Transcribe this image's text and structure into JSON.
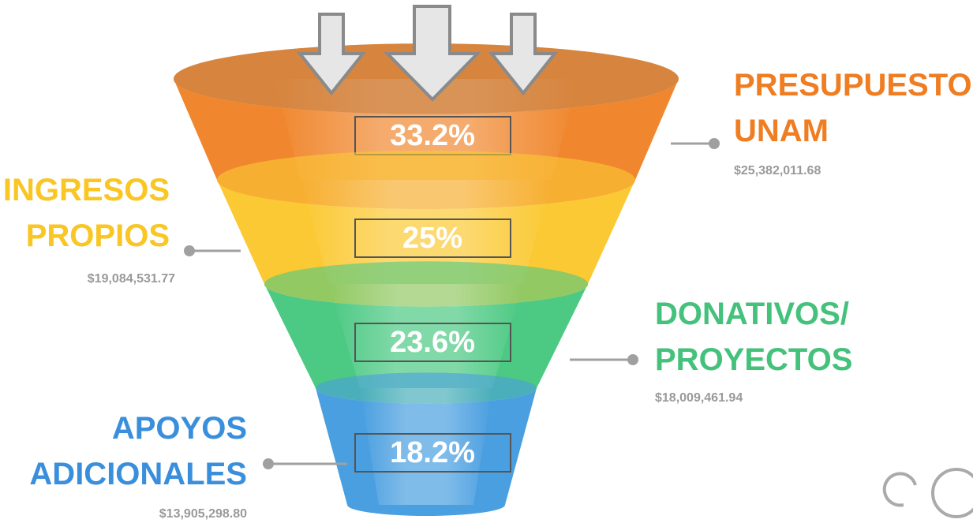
{
  "chart_data": {
    "type": "funnel",
    "categories": [
      "PRESUPUESTO UNAM",
      "INGRESOS PROPIOS",
      "DONATIVOS/ PROYECTOS",
      "APOYOS ADICIONALES"
    ],
    "values": [
      33.2,
      25,
      23.6,
      18.2
    ],
    "value_labels": [
      "33.2%",
      "25%",
      "23.6%",
      "18.2%"
    ],
    "amount_labels": [
      "$25,382,011.68",
      "$19,084,531.77",
      "$18,009,461.94",
      "$13,905,298.80"
    ],
    "colors": [
      "#f0872e",
      "#fbc934",
      "#4cc983",
      "#4a9fe0"
    ],
    "label_colors": [
      "#ef7d22",
      "#f9c623",
      "#44c17b",
      "#3a8fdd"
    ]
  }
}
